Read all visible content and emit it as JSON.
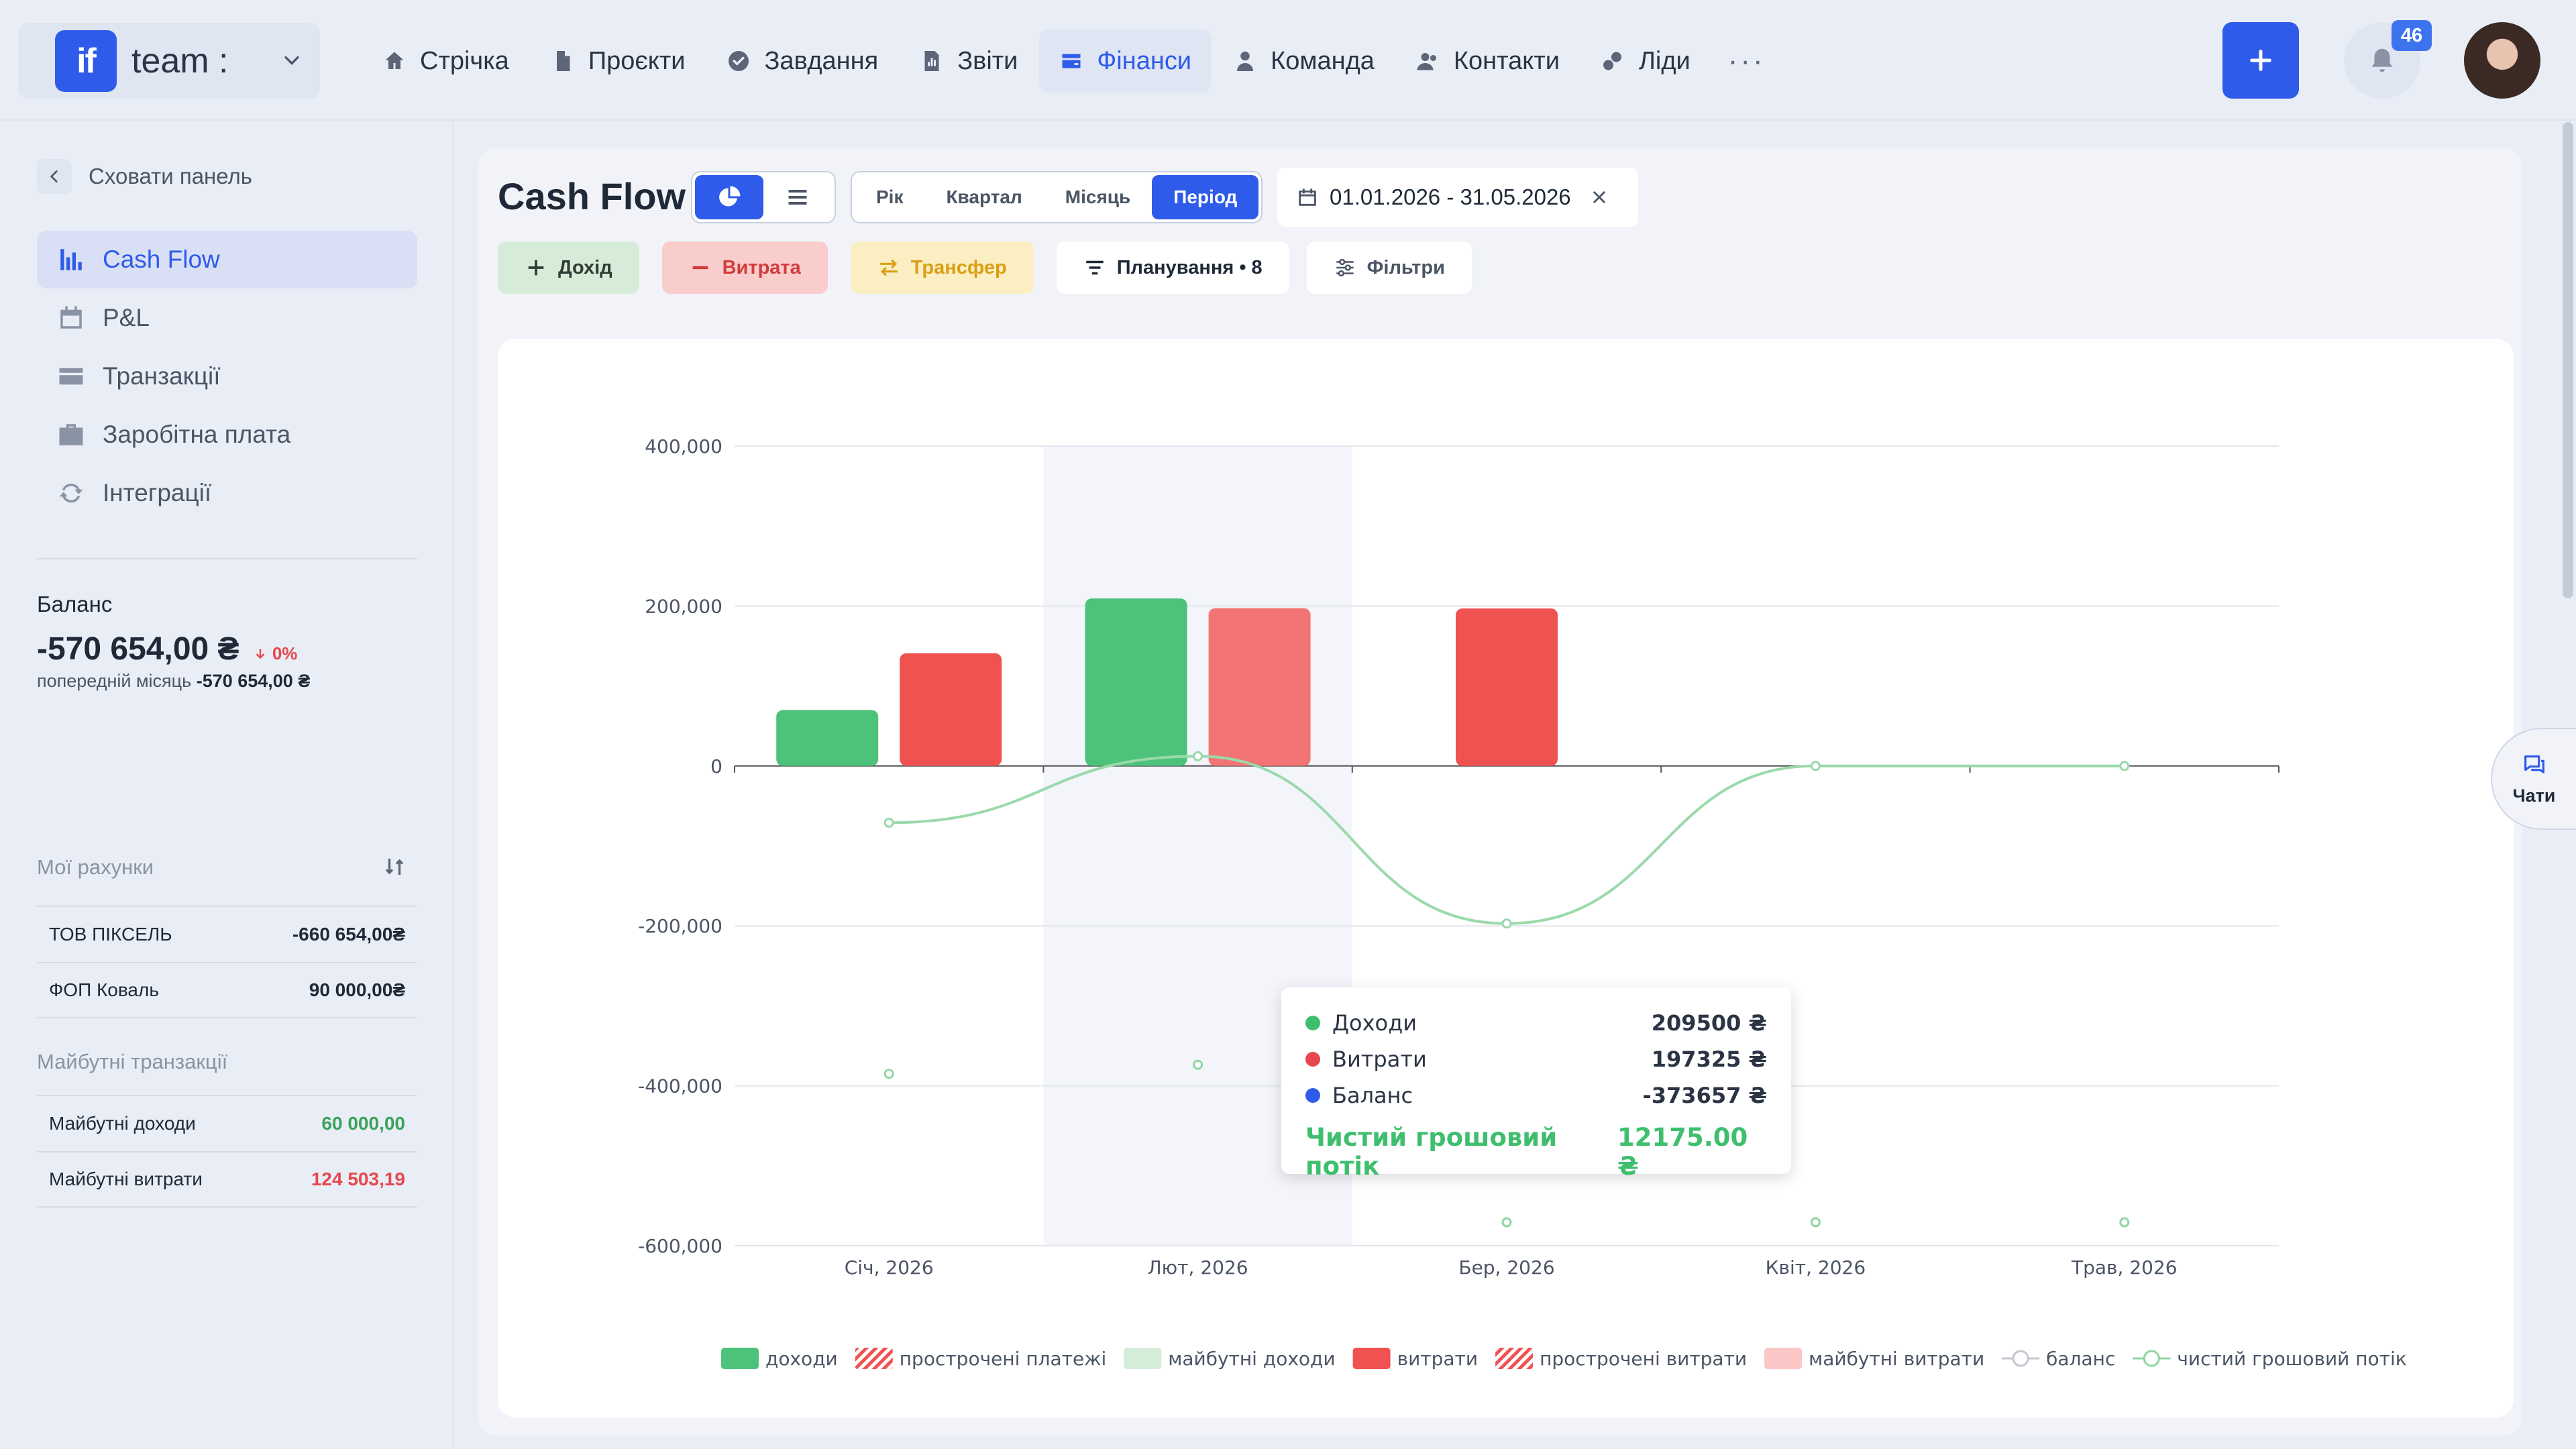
{
  "topbar": {
    "logo_text": "if",
    "team_name": "team :",
    "nav": [
      {
        "label": "Стрічка",
        "icon": "home-icon"
      },
      {
        "label": "Проєкти",
        "icon": "document-icon"
      },
      {
        "label": "Завдання",
        "icon": "check-circle-icon"
      },
      {
        "label": "Звіти",
        "icon": "report-icon"
      },
      {
        "label": "Фінанси",
        "icon": "wallet-icon",
        "active": true
      },
      {
        "label": "Команда",
        "icon": "user-icon"
      },
      {
        "label": "Контакти",
        "icon": "contacts-icon"
      },
      {
        "label": "Ліди",
        "icon": "leads-icon"
      }
    ],
    "more": "···",
    "notifications_count": "46"
  },
  "sidebar": {
    "hide_panel": "Сховати панель",
    "items": [
      {
        "label": "Cash Flow",
        "icon": "chart-icon",
        "active": true
      },
      {
        "label": "P&L",
        "icon": "calendar-dollar-icon"
      },
      {
        "label": "Транзакції",
        "icon": "card-icon"
      },
      {
        "label": "Заробітна плата",
        "icon": "briefcase-icon"
      },
      {
        "label": "Інтеграції",
        "icon": "sync-icon"
      }
    ],
    "balance": {
      "label": "Баланс",
      "value": "-570 654,00 ₴",
      "delta": "0%",
      "prev_label": "попередній місяць",
      "prev_value": "-570 654,00 ₴"
    },
    "accounts_title": "Мої рахунки",
    "accounts": [
      {
        "name": "ТОВ ПІКСЕЛЬ",
        "value": "-660 654,00₴"
      },
      {
        "name": "ФОП Коваль",
        "value": "90 000,00₴"
      }
    ],
    "future_title": "Майбутні транзакції",
    "future": [
      {
        "name": "Майбутні доходи",
        "value": "60 000,00"
      },
      {
        "name": "Майбутні витрати",
        "value": "124 503,19"
      }
    ]
  },
  "main": {
    "title": "Cash Flow",
    "period_tabs": [
      "Рік",
      "Квартал",
      "Місяць",
      "Період"
    ],
    "active_period": "Період",
    "date_range": "01.01.2026 - 31.05.2026",
    "actions": {
      "income": "Дохід",
      "expense": "Витрата",
      "transfer": "Трансфер",
      "planning": "Планування • 8",
      "filters": "Фільтри"
    }
  },
  "chart_data": {
    "type": "bar",
    "categories": [
      "Січ, 2026",
      "Лют, 2026",
      "Бер, 2026",
      "Квіт, 2026",
      "Трав, 2026"
    ],
    "ylim": [
      -600000,
      400000
    ],
    "y_ticks": [
      "400,000",
      "200,000",
      "0",
      "-200,000",
      "-400,000",
      "-600,000"
    ],
    "y_tick_values": [
      400000,
      200000,
      0,
      -200000,
      -400000,
      -600000
    ],
    "grid": true,
    "highlight_category": "Лют, 2026",
    "series": [
      {
        "name": "доходи",
        "kind": "bar",
        "color": "#4cc27a",
        "values": [
          70000,
          209500,
          0,
          0,
          0
        ]
      },
      {
        "name": "витрати",
        "kind": "bar",
        "color": "#f05252",
        "values": [
          141000,
          197325,
          197000,
          0,
          0
        ]
      },
      {
        "name": "баланс",
        "kind": "points",
        "color": "#8fd6a4",
        "values": [
          -385000,
          -373657,
          -570654,
          -570654,
          -570654
        ]
      },
      {
        "name": "чистий грошовий потік",
        "kind": "line",
        "color": "#9ad9ab",
        "values": [
          -71000,
          12175,
          -197000,
          0,
          0
        ]
      }
    ],
    "legend": [
      {
        "label": "доходи",
        "style": "solid",
        "color": "#4cc27a"
      },
      {
        "label": "прострочені платежі",
        "style": "hatched",
        "color": "#f05252"
      },
      {
        "label": "майбутні доходи",
        "style": "solid",
        "color": "#d5ecd9"
      },
      {
        "label": "витрати",
        "style": "solid",
        "color": "#f05252"
      },
      {
        "label": "прострочені витрати",
        "style": "hatched",
        "color": "#f05252"
      },
      {
        "label": "майбутні витрати",
        "style": "solid",
        "color": "#fbc6c6"
      },
      {
        "label": "баланс",
        "style": "line-dot",
        "color": "#c3c7cf"
      },
      {
        "label": "чистий грошовий потік",
        "style": "line-dot",
        "color": "#8fd6a4"
      }
    ],
    "legend_position": "bottom"
  },
  "tooltip": {
    "rows": [
      {
        "label": "Доходи",
        "value": "209500 ₴",
        "color": "#3fbf6e"
      },
      {
        "label": "Витрати",
        "value": "197325 ₴",
        "color": "#e5484d"
      },
      {
        "label": "Баланс",
        "value": "-373657 ₴",
        "color": "#2f5bea"
      }
    ],
    "net_label": "Чистий грошовий потік",
    "net_value": "12175.00 ₴"
  },
  "chat": {
    "label": "Чати"
  }
}
